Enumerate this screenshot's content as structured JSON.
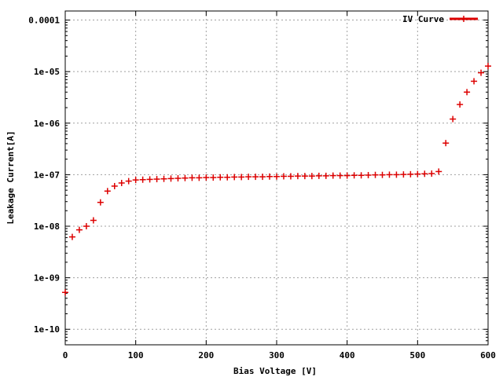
{
  "chart_data": {
    "type": "scatter",
    "xlabel": "Bias Voltage [V]",
    "ylabel": "Leakage Current[A]",
    "xlim": [
      0,
      600
    ],
    "ylim": [
      5e-11,
      0.00015
    ],
    "yscale": "log",
    "grid": true,
    "legend_position": "top-right",
    "x_ticks": [
      {
        "value": 0,
        "label": "0"
      },
      {
        "value": 100,
        "label": "100"
      },
      {
        "value": 200,
        "label": "200"
      },
      {
        "value": 300,
        "label": "300"
      },
      {
        "value": 400,
        "label": "400"
      },
      {
        "value": 500,
        "label": "500"
      },
      {
        "value": 600,
        "label": "600"
      }
    ],
    "y_ticks": [
      {
        "value": 1e-10,
        "label": "1e-10"
      },
      {
        "value": 1e-09,
        "label": "1e-09"
      },
      {
        "value": 1e-08,
        "label": "1e-08"
      },
      {
        "value": 1e-07,
        "label": "1e-07"
      },
      {
        "value": 1e-06,
        "label": "1e-06"
      },
      {
        "value": 1e-05,
        "label": "1e-05"
      },
      {
        "value": 0.0001,
        "label": "0.0001"
      }
    ],
    "series": [
      {
        "name": "IV Curve",
        "color": "#dd0000",
        "points": [
          [
            0,
            5.2e-10
          ],
          [
            10,
            6.2e-09
          ],
          [
            20,
            8.5e-09
          ],
          [
            30,
            1e-08
          ],
          [
            40,
            1.3e-08
          ],
          [
            50,
            2.9e-08
          ],
          [
            60,
            4.8e-08
          ],
          [
            70,
            6e-08
          ],
          [
            80,
            6.9e-08
          ],
          [
            90,
            7.5e-08
          ],
          [
            100,
            7.9e-08
          ],
          [
            110,
            8e-08
          ],
          [
            120,
            8.1e-08
          ],
          [
            130,
            8.2e-08
          ],
          [
            140,
            8.3e-08
          ],
          [
            150,
            8.4e-08
          ],
          [
            160,
            8.5e-08
          ],
          [
            170,
            8.6e-08
          ],
          [
            180,
            8.7e-08
          ],
          [
            190,
            8.7e-08
          ],
          [
            200,
            8.8e-08
          ],
          [
            210,
            8.8e-08
          ],
          [
            220,
            8.9e-08
          ],
          [
            230,
            8.9e-08
          ],
          [
            240,
            9e-08
          ],
          [
            250,
            9e-08
          ],
          [
            260,
            9.1e-08
          ],
          [
            270,
            9.1e-08
          ],
          [
            280,
            9.1e-08
          ],
          [
            290,
            9.2e-08
          ],
          [
            300,
            9.2e-08
          ],
          [
            310,
            9.3e-08
          ],
          [
            320,
            9.3e-08
          ],
          [
            330,
            9.4e-08
          ],
          [
            340,
            9.4e-08
          ],
          [
            350,
            9.4e-08
          ],
          [
            360,
            9.5e-08
          ],
          [
            370,
            9.5e-08
          ],
          [
            380,
            9.6e-08
          ],
          [
            390,
            9.6e-08
          ],
          [
            400,
            9.6e-08
          ],
          [
            410,
            9.7e-08
          ],
          [
            420,
            9.7e-08
          ],
          [
            430,
            9.8e-08
          ],
          [
            440,
            9.9e-08
          ],
          [
            450,
            9.9e-08
          ],
          [
            460,
            1e-07
          ],
          [
            470,
            1e-07
          ],
          [
            480,
            1.01e-07
          ],
          [
            490,
            1.02e-07
          ],
          [
            500,
            1.03e-07
          ],
          [
            510,
            1.04e-07
          ],
          [
            520,
            1.05e-07
          ],
          [
            530,
            1.15e-07
          ],
          [
            540,
            4.1e-07
          ],
          [
            550,
            1.2e-06
          ],
          [
            560,
            2.3e-06
          ],
          [
            570,
            4e-06
          ],
          [
            580,
            6.5e-06
          ],
          [
            590,
            9.5e-06
          ],
          [
            600,
            1.28e-05
          ]
        ]
      }
    ]
  }
}
